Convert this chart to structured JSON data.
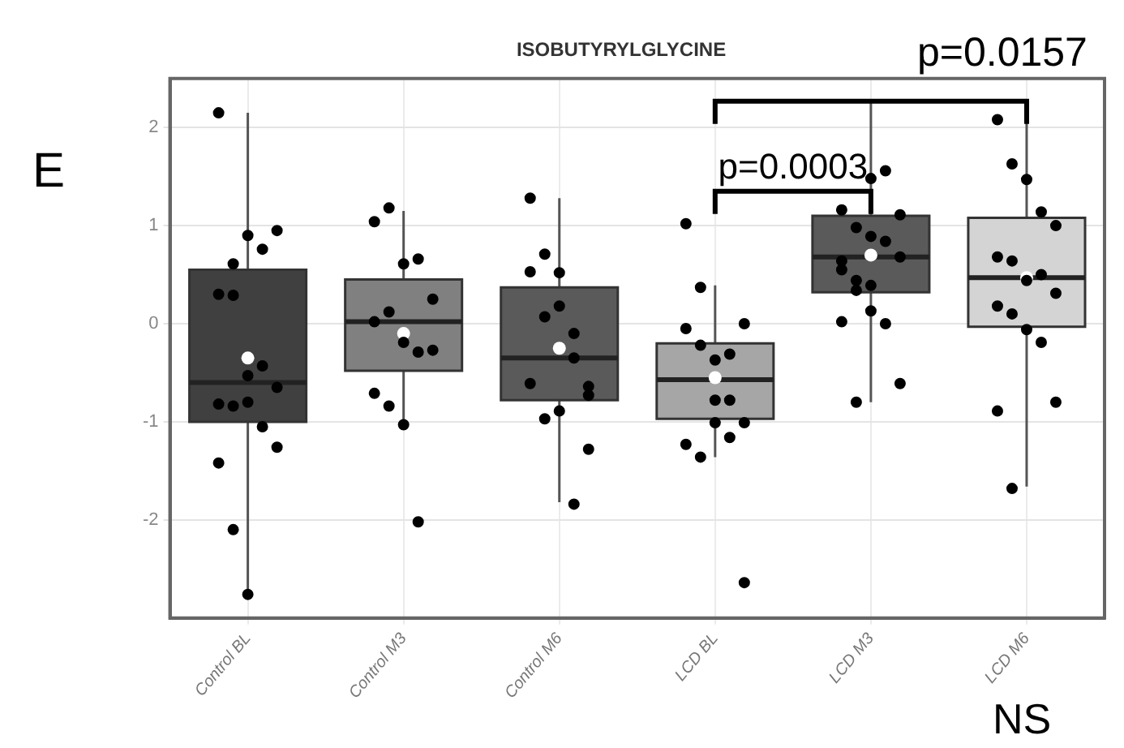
{
  "chart_data": {
    "type": "box",
    "title": "ISOBUTYRYLGLYCINE",
    "categories": [
      "Control BL",
      "Control M3",
      "Control M6",
      "LCD BL",
      "LCD M3",
      "LCD M6"
    ],
    "colors": [
      "#404040",
      "#808080",
      "#5a5a5a",
      "#a6a6a6",
      "#5a5a5a",
      "#d4d4d4"
    ],
    "boxes": [
      {
        "low": -2.75,
        "q1": -1.0,
        "median": -0.6,
        "q3": 0.55,
        "high": 2.15,
        "mean": -0.35
      },
      {
        "low": -1.0,
        "q1": -0.48,
        "median": 0.02,
        "q3": 0.45,
        "high": 1.15,
        "mean": -0.1
      },
      {
        "low": -1.82,
        "q1": -0.78,
        "median": -0.35,
        "q3": 0.37,
        "high": 1.28,
        "mean": -0.25
      },
      {
        "low": -1.36,
        "q1": -0.97,
        "median": -0.57,
        "q3": -0.2,
        "high": 0.39,
        "mean": -0.55
      },
      {
        "low": -0.8,
        "q1": 0.32,
        "median": 0.68,
        "q3": 1.1,
        "high": 2.27,
        "mean": 0.7
      },
      {
        "low": -1.66,
        "q1": -0.03,
        "median": 0.47,
        "q3": 1.08,
        "high": 2.08,
        "mean": 0.47
      }
    ],
    "series": [
      {
        "type": "scatter",
        "color": "#000000",
        "x": [
          "Control BL",
          "Control BL",
          "Control BL",
          "Control BL",
          "Control BL",
          "Control BL",
          "Control BL",
          "Control BL",
          "Control BL",
          "Control BL",
          "Control BL",
          "Control BL",
          "Control BL",
          "Control BL",
          "Control BL",
          "Control BL",
          "Control BL",
          "Control BL",
          "Control M3",
          "Control M3",
          "Control M3",
          "Control M3",
          "Control M3",
          "Control M3",
          "Control M3",
          "Control M3",
          "Control M3",
          "Control M3",
          "Control M3",
          "Control M3",
          "Control M3",
          "Control M3",
          "Control M6",
          "Control M6",
          "Control M6",
          "Control M6",
          "Control M6",
          "Control M6",
          "Control M6",
          "Control M6",
          "Control M6",
          "Control M6",
          "Control M6",
          "Control M6",
          "Control M6",
          "Control M6",
          "Control M6",
          "LCD BL",
          "LCD BL",
          "LCD BL",
          "LCD BL",
          "LCD BL",
          "LCD BL",
          "LCD BL",
          "LCD BL",
          "LCD BL",
          "LCD BL",
          "LCD BL",
          "LCD BL",
          "LCD BL",
          "LCD BL",
          "LCD BL",
          "LCD M3",
          "LCD M3",
          "LCD M3",
          "LCD M3",
          "LCD M3",
          "LCD M3",
          "LCD M3",
          "LCD M3",
          "LCD M3",
          "LCD M3",
          "LCD M3",
          "LCD M3",
          "LCD M3",
          "LCD M3",
          "LCD M3",
          "LCD M3",
          "LCD M3",
          "LCD M3",
          "LCD M6",
          "LCD M6",
          "LCD M6",
          "LCD M6",
          "LCD M6",
          "LCD M6",
          "LCD M6",
          "LCD M6",
          "LCD M6",
          "LCD M6",
          "LCD M6",
          "LCD M6",
          "LCD M6",
          "LCD M6",
          "LCD M6",
          "LCD M6",
          "LCD M6"
        ],
        "values": [
          2.15,
          0.61,
          0.9,
          0.76,
          0.95,
          0.3,
          0.29,
          -0.53,
          -0.43,
          -0.65,
          -0.82,
          -0.84,
          -0.8,
          -1.05,
          -1.26,
          -1.42,
          -2.1,
          -2.76,
          1.04,
          1.18,
          0.61,
          0.66,
          0.25,
          0.02,
          0.12,
          -0.19,
          -0.29,
          -0.27,
          -0.71,
          -0.84,
          -1.03,
          -2.02,
          1.28,
          0.71,
          0.52,
          -0.1,
          -0.73,
          0.53,
          0.07,
          0.18,
          -0.35,
          -0.64,
          -0.61,
          -0.97,
          -0.89,
          -1.84,
          -1.28,
          1.02,
          -0.22,
          -0.37,
          -0.31,
          0.0,
          -0.05,
          0.37,
          -0.78,
          -0.78,
          -1.01,
          -1.23,
          -1.36,
          -1.01,
          -1.16,
          -2.64,
          0.02,
          -0.8,
          1.48,
          1.56,
          1.11,
          1.16,
          0.98,
          0.89,
          0.84,
          0.68,
          0.64,
          0.34,
          0.13,
          0.0,
          -0.61,
          0.55,
          0.44,
          0.39,
          2.08,
          1.63,
          1.47,
          1.14,
          1.0,
          0.68,
          0.64,
          0.44,
          0.5,
          0.31,
          0.18,
          0.1,
          -0.06,
          -0.19,
          -0.8,
          -0.89,
          -1.68
        ]
      }
    ],
    "ylim": [
      -3,
      2.5
    ],
    "yticks": [
      -2,
      -1,
      0,
      1,
      2
    ],
    "grid": true,
    "marker": "circle",
    "annotations": [
      "E",
      {
        "text": "p=0.0003",
        "x": "LCD M3",
        "y": 1.35
      },
      "p=0.0157",
      "NS"
    ]
  }
}
